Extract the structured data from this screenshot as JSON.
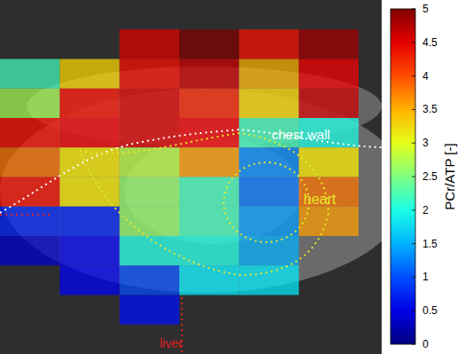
{
  "chart_data": {
    "type": "heatmap",
    "tick_labels": false,
    "cells": [
      [
        null,
        null,
        null,
        null,
        null,
        null
      ],
      [
        null,
        null,
        4.5,
        5.0,
        4.3,
        4.8
      ],
      [
        2.2,
        3.3,
        4.3,
        4.6,
        3.5,
        4.4
      ],
      [
        2.7,
        4.3,
        4.5,
        4.2,
        3.3,
        4.6
      ],
      [
        4.3,
        4.4,
        4.5,
        4.4,
        2.2,
        2.0
      ],
      [
        3.8,
        3.2,
        2.8,
        3.6,
        1.3,
        3.2
      ],
      [
        4.3,
        3.2,
        2.6,
        2.2,
        1.2,
        3.8
      ],
      [
        0.8,
        0.8,
        2.6,
        2.2,
        1.4,
        3.6
      ],
      [
        0.4,
        0.6,
        2.0,
        2.0,
        1.5,
        null
      ],
      [
        null,
        0.6,
        1.0,
        1.8,
        1.8,
        null
      ],
      [
        null,
        null,
        0.7,
        null,
        null,
        null
      ],
      [
        null,
        null,
        null,
        null,
        null,
        null
      ]
    ],
    "colorbar": {
      "label": "PCr/ATP [-]",
      "range": [
        0,
        5
      ],
      "ticks": [
        0,
        0.5,
        1,
        1.5,
        2,
        2.5,
        3,
        3.5,
        4,
        4.5,
        5
      ]
    },
    "annotations": [
      {
        "text": "chest wall",
        "color": "#ffffff"
      },
      {
        "text": "heart",
        "color": "#e8e82a"
      },
      {
        "text": "liver",
        "color": "#e02020"
      }
    ]
  }
}
